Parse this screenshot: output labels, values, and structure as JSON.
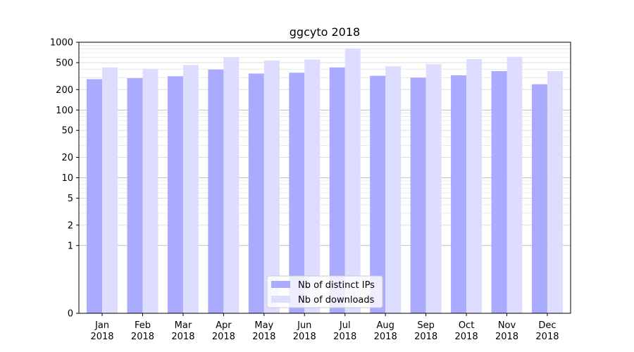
{
  "chart_data": {
    "type": "bar",
    "title": "ggcyto 2018",
    "xlabel": "",
    "ylabel": "",
    "yscale": "symlog",
    "ylim": [
      0,
      1000
    ],
    "yticks": [
      0,
      1,
      2,
      5,
      10,
      20,
      50,
      100,
      200,
      500,
      1000
    ],
    "categories": [
      [
        "Jan",
        "2018"
      ],
      [
        "Feb",
        "2018"
      ],
      [
        "Mar",
        "2018"
      ],
      [
        "Apr",
        "2018"
      ],
      [
        "May",
        "2018"
      ],
      [
        "Jun",
        "2018"
      ],
      [
        "Jul",
        "2018"
      ],
      [
        "Aug",
        "2018"
      ],
      [
        "Sep",
        "2018"
      ],
      [
        "Oct",
        "2018"
      ],
      [
        "Nov",
        "2018"
      ],
      [
        "Dec",
        "2018"
      ]
    ],
    "series": [
      {
        "name": "Nb of distinct IPs",
        "color": "#aaaaff",
        "values": [
          285,
          295,
          315,
          395,
          345,
          355,
          425,
          320,
          300,
          325,
          375,
          240
        ]
      },
      {
        "name": "Nb of downloads",
        "color": "#ddddff",
        "values": [
          425,
          405,
          460,
          600,
          535,
          555,
          810,
          440,
          475,
          565,
          610,
          375
        ]
      }
    ],
    "grid": true,
    "legend_position": "bottom-center"
  }
}
